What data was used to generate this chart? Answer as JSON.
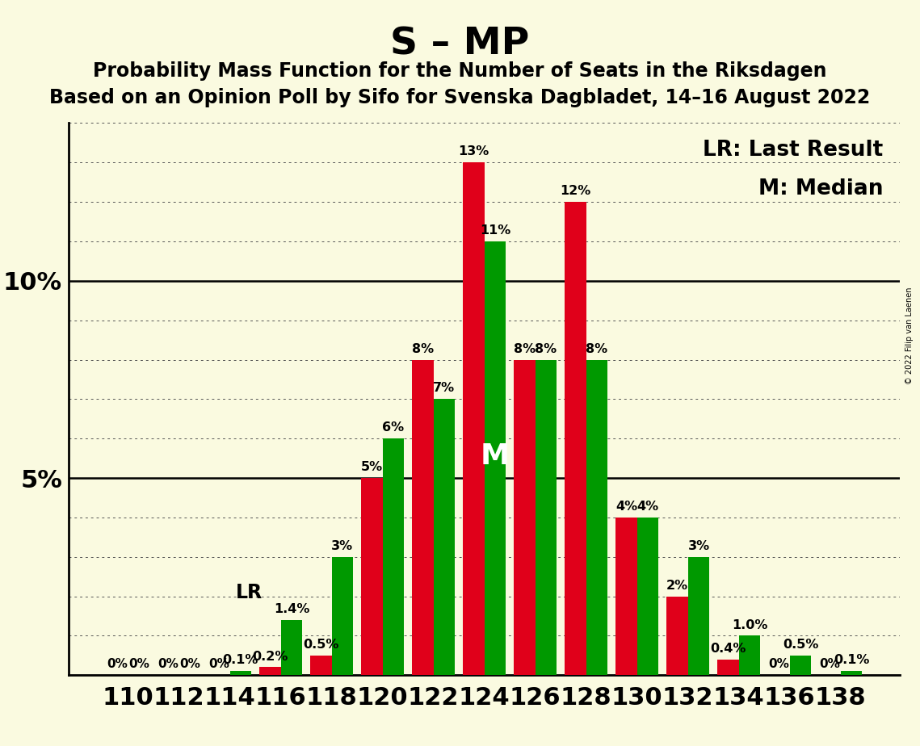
{
  "title": "S – MP",
  "subtitle1": "Probability Mass Function for the Number of Seats in the Riksdagen",
  "subtitle2": "Based on an Opinion Poll by Sifo for Svenska Dagbladet, 14–16 August 2022",
  "legend_lr": "LR: Last Result",
  "legend_m": "M: Median",
  "copyright": "© 2022 Filip van Laenen",
  "seats": [
    110,
    112,
    114,
    116,
    118,
    120,
    122,
    124,
    126,
    128,
    130,
    132,
    134,
    136,
    138
  ],
  "red_values": [
    0.0,
    0.0,
    0.0,
    0.2,
    0.5,
    5.0,
    8.0,
    13.0,
    8.0,
    12.0,
    4.0,
    2.0,
    0.4,
    0.0,
    0.0
  ],
  "green_values": [
    0.0,
    0.0,
    0.1,
    1.4,
    3.0,
    6.0,
    7.0,
    11.0,
    8.0,
    8.0,
    4.0,
    3.0,
    1.0,
    0.5,
    0.1
  ],
  "red_labels": [
    "",
    "",
    "",
    "0.2%",
    "0.5%",
    "5%",
    "8%",
    "13%",
    "8%",
    "12%",
    "4%",
    "2%",
    "0.4%",
    "",
    ""
  ],
  "green_labels": [
    "",
    "",
    "0.1%",
    "1.4%",
    "3%",
    "6%",
    "7%",
    "11%",
    "8%",
    "8%",
    "4%",
    "3%",
    "1.0%",
    "0.5%",
    "0.1%"
  ],
  "zero_labels_red": [
    0,
    1,
    2,
    13,
    14
  ],
  "zero_labels_green": [
    0,
    1
  ],
  "lr_seat": 116,
  "median_seat": 124,
  "background_color": "#FAFAE0",
  "red_color": "#E0001A",
  "green_color": "#009900",
  "bar_width": 0.42,
  "ylim": [
    0,
    14.0
  ],
  "title_fontsize": 34,
  "subtitle_fontsize": 17,
  "tick_fontsize": 22,
  "annotation_fontsize": 11.5,
  "legend_fontsize": 19,
  "zero_label_fontsize": 11
}
